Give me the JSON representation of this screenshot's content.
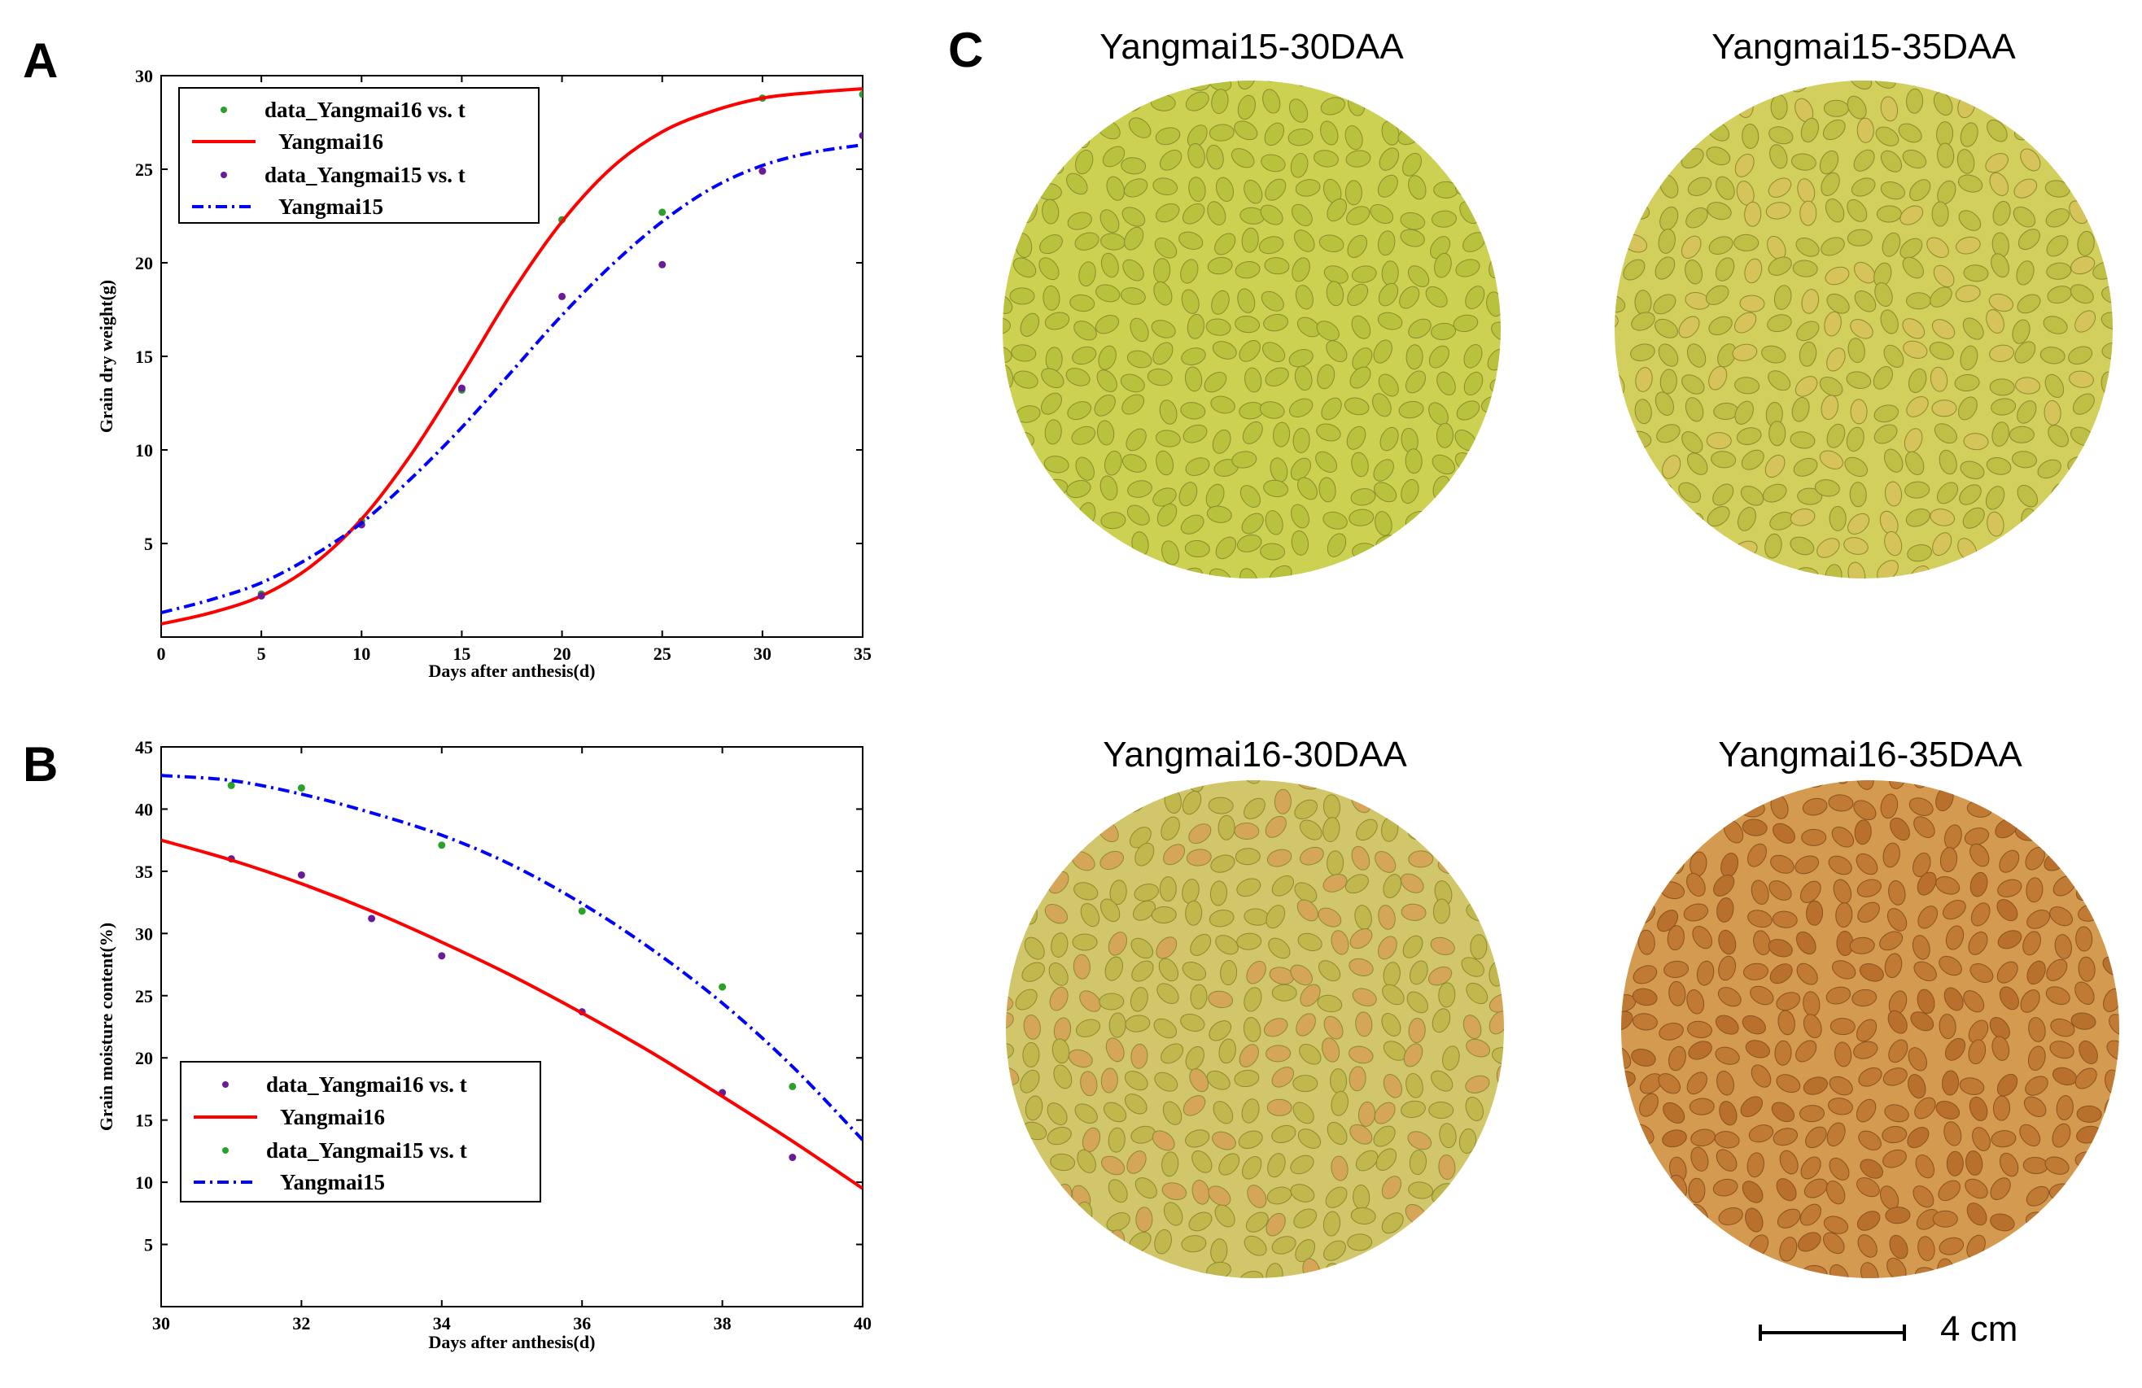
{
  "panel_labels": {
    "a": "A",
    "b": "B",
    "c": "C"
  },
  "chart_data": [
    {
      "type": "line",
      "panel": "A",
      "xlabel": "Days after anthesis(d)",
      "ylabel": "Grain dry weight(g)",
      "xlim": [
        0,
        35
      ],
      "ylim": [
        0,
        30
      ],
      "xticks": [
        "0",
        "5",
        "10",
        "15",
        "20",
        "25",
        "30",
        "35"
      ],
      "yticks": [
        "5",
        "10",
        "15",
        "20",
        "25",
        "30"
      ],
      "legend": [
        {
          "label": "data_Yangmai16 vs. t",
          "kind": "marker",
          "color": "#2ca02c"
        },
        {
          "label": "Yangmai16",
          "kind": "solid",
          "color": "#ff0000"
        },
        {
          "label": "data_Yangmai15 vs. t",
          "kind": "marker",
          "color": "#6a1b9a"
        },
        {
          "label": "Yangmai15",
          "kind": "dashdot",
          "color": "#0000ff"
        }
      ],
      "series": [
        {
          "name": "data_Yangmai16 vs. t",
          "style": "points",
          "color": "#2ca02c",
          "x": [
            5,
            10,
            15,
            20,
            25,
            30,
            35
          ],
          "y": [
            2.3,
            6.2,
            13.2,
            22.3,
            22.7,
            28.8,
            29.0
          ]
        },
        {
          "name": "Yangmai16",
          "style": "solid",
          "color": "#ff0000",
          "x": [
            0,
            2.5,
            5,
            7.5,
            10,
            12.5,
            15,
            17.5,
            20,
            22.5,
            25,
            27.5,
            30,
            32.5,
            35
          ],
          "y": [
            0.7,
            1.3,
            2.2,
            3.8,
            6.3,
            9.8,
            14.0,
            18.4,
            22.2,
            25.1,
            27.0,
            28.1,
            28.8,
            29.1,
            29.3
          ]
        },
        {
          "name": "data_Yangmai15 vs. t",
          "style": "points",
          "color": "#6a1b9a",
          "x": [
            5,
            10,
            15,
            20,
            25,
            30,
            35
          ],
          "y": [
            2.2,
            6.0,
            13.3,
            18.2,
            19.9,
            24.9,
            26.8
          ]
        },
        {
          "name": "Yangmai15",
          "style": "dashdot",
          "color": "#0000ff",
          "x": [
            0,
            2.5,
            5,
            7.5,
            10,
            12.5,
            15,
            17.5,
            20,
            22.5,
            25,
            27.5,
            30,
            32.5,
            35
          ],
          "y": [
            1.3,
            2.0,
            2.9,
            4.3,
            6.1,
            8.5,
            11.2,
            14.2,
            17.2,
            19.9,
            22.2,
            24.0,
            25.2,
            25.9,
            26.3
          ]
        }
      ]
    },
    {
      "type": "line",
      "panel": "B",
      "xlabel": "Days after anthesis(d)",
      "ylabel": "Grain moisture content(%)",
      "xlim": [
        30,
        40
      ],
      "ylim": [
        0,
        45
      ],
      "xticks": [
        "30",
        "32",
        "34",
        "36",
        "38",
        "40"
      ],
      "yticks": [
        "5",
        "10",
        "15",
        "20",
        "25",
        "30",
        "35",
        "40",
        "45"
      ],
      "legend": [
        {
          "label": "data_Yangmai16 vs. t",
          "kind": "marker",
          "color": "#6a1b9a"
        },
        {
          "label": "Yangmai16",
          "kind": "solid",
          "color": "#ff0000"
        },
        {
          "label": "data_Yangmai15 vs. t",
          "kind": "marker",
          "color": "#2ca02c"
        },
        {
          "label": "Yangmai15",
          "kind": "dashdot",
          "color": "#0000ff"
        }
      ],
      "series": [
        {
          "name": "data_Yangmai16 vs. t",
          "style": "points",
          "color": "#6a1b9a",
          "x": [
            31,
            32,
            33,
            34,
            36,
            38,
            39
          ],
          "y": [
            36.0,
            34.7,
            31.2,
            28.2,
            23.7,
            17.2,
            12.0
          ]
        },
        {
          "name": "Yangmai16",
          "style": "solid",
          "color": "#ff0000",
          "x": [
            30,
            31,
            32,
            33,
            34,
            35,
            36,
            37,
            38,
            39,
            40
          ],
          "y": [
            37.5,
            35.9,
            34.0,
            31.8,
            29.3,
            26.6,
            23.6,
            20.4,
            16.9,
            13.3,
            9.5
          ]
        },
        {
          "name": "data_Yangmai15 vs. t",
          "style": "points",
          "color": "#2ca02c",
          "x": [
            31,
            32,
            34,
            36,
            38,
            39
          ],
          "y": [
            41.9,
            41.7,
            37.1,
            31.8,
            25.7,
            17.7
          ]
        },
        {
          "name": "Yangmai15",
          "style": "dashdot",
          "color": "#0000ff",
          "x": [
            30,
            31,
            32,
            33,
            34,
            35,
            36,
            37,
            38,
            39,
            40
          ],
          "y": [
            42.7,
            42.3,
            41.2,
            39.7,
            37.9,
            35.5,
            32.4,
            28.7,
            24.4,
            19.3,
            13.4
          ]
        }
      ]
    }
  ],
  "panel_c": {
    "photos": [
      {
        "title": "Yangmai15-30DAA",
        "tone": "green",
        "base": "#cdd152",
        "kernel": "#b9c23c"
      },
      {
        "title": "Yangmai15-35DAA",
        "tone": "green-yellow",
        "base": "#d2cf5c",
        "kernel": "#bfbe45"
      },
      {
        "title": "Yangmai16-30DAA",
        "tone": "mixed",
        "base": "#d2c66a",
        "kernel": "#c0b84c"
      },
      {
        "title": "Yangmai16-35DAA",
        "tone": "brown",
        "base": "#d49a4f",
        "kernel": "#c07a34"
      }
    ],
    "scale_bar_label": "4 cm"
  }
}
